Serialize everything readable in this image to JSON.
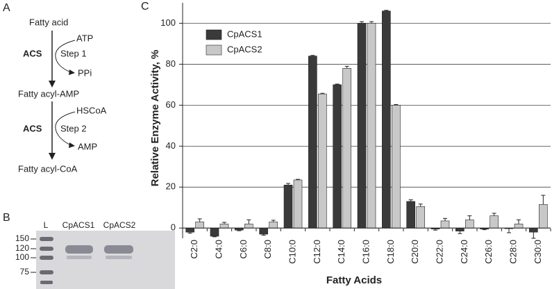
{
  "panels": [
    "A",
    "B",
    "C"
  ],
  "diagram": {
    "substrate": "Fatty acid",
    "step1": {
      "enzyme": "ACS",
      "step": "Step 1",
      "input": "ATP",
      "output": "PPi"
    },
    "intermediate": "Fatty acyl-AMP",
    "step2": {
      "enzyme": "ACS",
      "step": "Step 2",
      "input": "HSCoA",
      "output": "AMP"
    },
    "product": "Fatty acyl-CoA"
  },
  "gel": {
    "lanes": [
      "L",
      "CpACS1",
      "CpACS2"
    ],
    "markers": [
      "150",
      "120",
      "100",
      "75"
    ]
  },
  "chart_data": {
    "type": "bar",
    "ylabel": "Relative Enzyme Activity, %",
    "xlabel": "Fatty Acids",
    "categories": [
      "C2:0",
      "C4:0",
      "C6:0",
      "C8:0",
      "C10:0",
      "C12:0",
      "C14:0",
      "C16:0",
      "C18:0",
      "C20:0",
      "C22:0",
      "C24:0",
      "C26:0",
      "C28:0",
      "C30:0"
    ],
    "series": [
      {
        "name": "CpACS1",
        "color": "#3a3a3a",
        "values": [
          -2,
          -4,
          -1,
          -3,
          21,
          84,
          70,
          100,
          106,
          13,
          -0.5,
          -1.5,
          -0.5,
          -0.3,
          -2
        ],
        "errors": [
          0.5,
          0.3,
          0.3,
          0.5,
          0.8,
          0.3,
          0.3,
          0.8,
          0.3,
          0.8,
          0.5,
          1.2,
          0.3,
          2,
          3
        ]
      },
      {
        "name": "CpACS2",
        "color": "#c8c8c8",
        "values": [
          3,
          2,
          2,
          3,
          23.5,
          65.5,
          78,
          100,
          60,
          10.5,
          3.5,
          4,
          6,
          2,
          11.5
        ],
        "errors": [
          1.5,
          0.8,
          2,
          0.8,
          0.3,
          0.3,
          1,
          0.8,
          0.3,
          1.2,
          1.2,
          2,
          1.2,
          2,
          4.5
        ]
      }
    ],
    "ylim": [
      -5,
      110
    ],
    "yticks": [
      0,
      20,
      40,
      60,
      80,
      100
    ],
    "grid": true,
    "legend": "top-left"
  }
}
